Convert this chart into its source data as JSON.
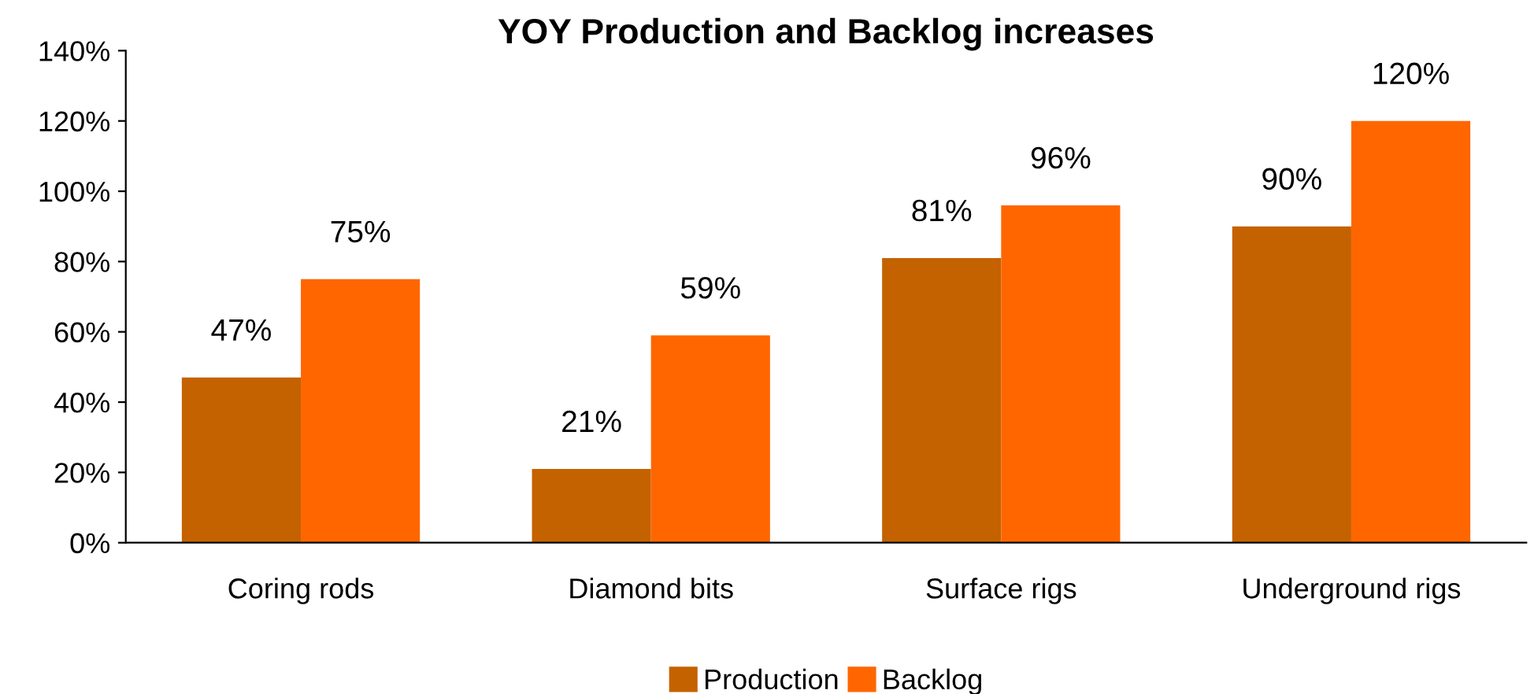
{
  "chart_data": {
    "type": "bar",
    "title": "YOY Production and Backlog increases",
    "categories": [
      "Coring rods",
      "Diamond bits",
      "Surface rigs",
      "Underground rigs"
    ],
    "series": [
      {
        "name": "Production",
        "color": "#c46200",
        "values": [
          47,
          21,
          81,
          90
        ],
        "value_labels": [
          "47%",
          "21%",
          "81%",
          "90%"
        ]
      },
      {
        "name": "Backlog",
        "color": "#ff6600",
        "values": [
          75,
          59,
          96,
          120
        ],
        "value_labels": [
          "75%",
          "59%",
          "96%",
          "120%"
        ]
      }
    ],
    "ylim": [
      0,
      140
    ],
    "yticks": [
      {
        "value": 0,
        "label": "0%"
      },
      {
        "value": 20,
        "label": "20%"
      },
      {
        "value": 40,
        "label": "40%"
      },
      {
        "value": 60,
        "label": "60%"
      },
      {
        "value": 80,
        "label": "80%"
      },
      {
        "value": 100,
        "label": "100%"
      },
      {
        "value": 120,
        "label": "120%"
      },
      {
        "value": 140,
        "label": "140%"
      }
    ],
    "grid": false,
    "legend": "bottom"
  }
}
